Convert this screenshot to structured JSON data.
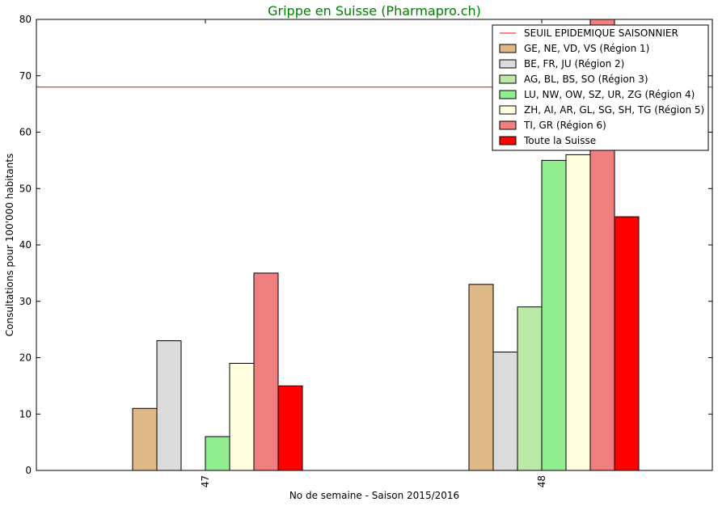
{
  "chart_data": {
    "type": "bar",
    "title": "Grippe en Suisse (Pharmapro.ch)",
    "title_color": "#008000",
    "xlabel": "No de semaine - Saison 2015/2016",
    "ylabel": "Consultations pour 100'000 habitants",
    "categories": [
      "47",
      "48"
    ],
    "ylim": [
      0,
      80
    ],
    "yticks": [
      0,
      10,
      20,
      30,
      40,
      50,
      60,
      70,
      80
    ],
    "grid": false,
    "legend_position": "top-right",
    "threshold": {
      "name": "SEUIL EPIDEMIQUE SAISONNIER",
      "value": 68,
      "color": "#ff0000"
    },
    "series": [
      {
        "name": "GE, NE, VD, VS (Région 1)",
        "color": "#deb887",
        "values": [
          11,
          33
        ]
      },
      {
        "name": "BE, FR, JU (Région 2)",
        "color": "#dcdcdc",
        "values": [
          23,
          21
        ]
      },
      {
        "name": "AG, BL, BS, SO (Région 3)",
        "color": "#bbeaa8",
        "values": [
          0,
          29
        ]
      },
      {
        "name": "LU, NW, OW, SZ, UR, ZG (Région 4)",
        "color": "#90ee90",
        "values": [
          6,
          55
        ]
      },
      {
        "name": "ZH, AI, AR, GL, SG, SH, TG (Région 5)",
        "color": "#ffffe0",
        "values": [
          19,
          56
        ]
      },
      {
        "name": "TI, GR (Région 6)",
        "color": "#f08080",
        "values": [
          35,
          80
        ]
      },
      {
        "name": "Toute la Suisse",
        "color": "#ff0000",
        "values": [
          15,
          45
        ]
      }
    ]
  }
}
